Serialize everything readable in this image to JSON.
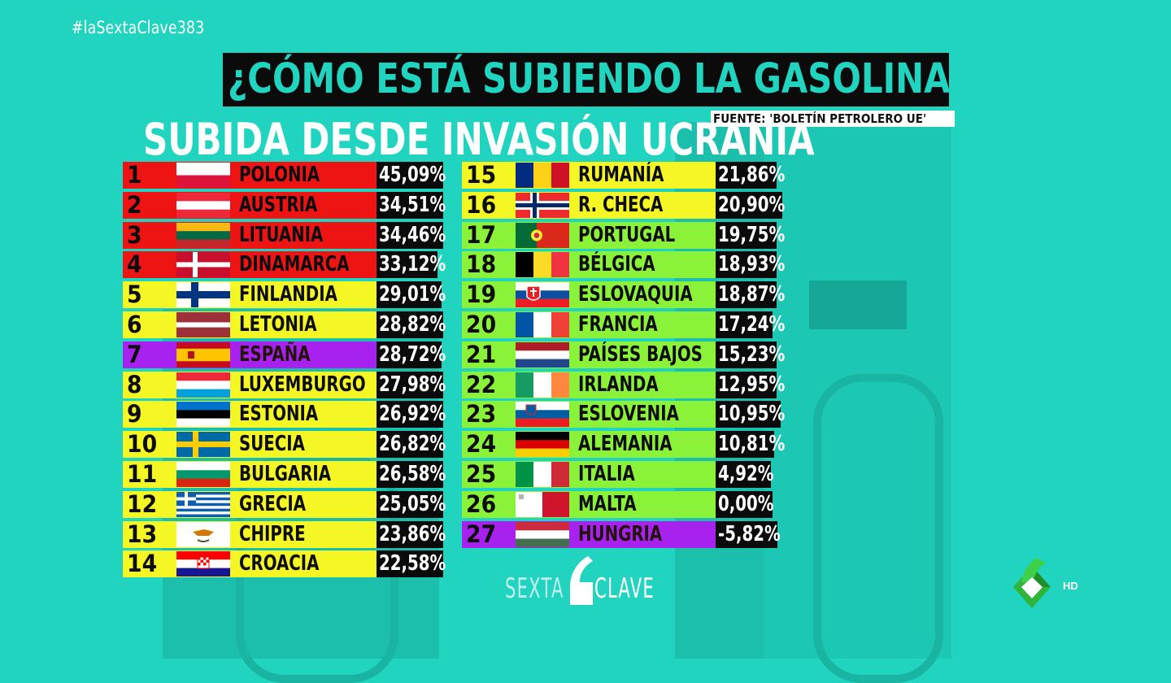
{
  "hashtag": "#laSextaClave383",
  "title": "¿CÓMO ESTÁ SUBIENDO LA GASOLINA EN EUROPA?",
  "source": "FUENTE: 'BOLETÍN PETROLERO UE'",
  "subtitle": "SUBIDA DESDE INVASIÓN UCRANIA",
  "colors": {
    "background": "#21d4c0",
    "red": "#ee1414",
    "yellow": "#f5f724",
    "purple": "#a722ee",
    "green": "#8bf23a",
    "value_box": "#0b0b0b"
  },
  "ranking": {
    "left": [
      {
        "rank": "1",
        "country": "POLONIA",
        "value": "45,09%",
        "color": "red",
        "flag": "poland-flag-icon"
      },
      {
        "rank": "2",
        "country": "AUSTRIA",
        "value": "34,51%",
        "color": "red",
        "flag": "austria-flag-icon"
      },
      {
        "rank": "3",
        "country": "LITUANIA",
        "value": "34,46%",
        "color": "red",
        "flag": "lithuania-flag-icon"
      },
      {
        "rank": "4",
        "country": "DINAMARCA",
        "value": "33,12%",
        "color": "red",
        "flag": "denmark-flag-icon"
      },
      {
        "rank": "5",
        "country": "FINLANDIA",
        "value": "29,01%",
        "color": "yellow",
        "flag": "finland-flag-icon"
      },
      {
        "rank": "6",
        "country": "LETONIA",
        "value": "28,82%",
        "color": "yellow",
        "flag": "latvia-flag-icon"
      },
      {
        "rank": "7",
        "country": "ESPAÑA",
        "value": "28,72%",
        "color": "purple",
        "flag": "spain-flag-icon"
      },
      {
        "rank": "8",
        "country": "LUXEMBURGO",
        "value": "27,98%",
        "color": "yellow",
        "flag": "luxembourg-flag-icon"
      },
      {
        "rank": "9",
        "country": "ESTONIA",
        "value": "26,92%",
        "color": "yellow",
        "flag": "estonia-flag-icon"
      },
      {
        "rank": "10",
        "country": "SUECIA",
        "value": "26,82%",
        "color": "yellow",
        "flag": "sweden-flag-icon"
      },
      {
        "rank": "11",
        "country": "BULGARIA",
        "value": "26,58%",
        "color": "yellow",
        "flag": "bulgaria-flag-icon"
      },
      {
        "rank": "12",
        "country": "GRECIA",
        "value": "25,05%",
        "color": "yellow",
        "flag": "greece-flag-icon"
      },
      {
        "rank": "13",
        "country": "CHIPRE",
        "value": "23,86%",
        "color": "yellow",
        "flag": "cyprus-flag-icon"
      },
      {
        "rank": "14",
        "country": "CROACIA",
        "value": "22,58%",
        "color": "yellow",
        "flag": "croatia-flag-icon"
      }
    ],
    "right": [
      {
        "rank": "15",
        "country": "RUMANÍA",
        "value": "21,86%",
        "color": "yellow",
        "flag": "romania-flag-icon"
      },
      {
        "rank": "16",
        "country": "R. CHECA",
        "value": "20,90%",
        "color": "yellow",
        "flag": "norway-style-flag-icon"
      },
      {
        "rank": "17",
        "country": "PORTUGAL",
        "value": "19,75%",
        "color": "green",
        "flag": "portugal-flag-icon"
      },
      {
        "rank": "18",
        "country": "BÉLGICA",
        "value": "18,93%",
        "color": "green",
        "flag": "belgium-flag-icon"
      },
      {
        "rank": "19",
        "country": "ESLOVAQUIA",
        "value": "18,87%",
        "color": "green",
        "flag": "slovakia-flag-icon"
      },
      {
        "rank": "20",
        "country": "FRANCIA",
        "value": "17,24%",
        "color": "green",
        "flag": "france-flag-icon"
      },
      {
        "rank": "21",
        "country": "PAÍSES BAJOS",
        "value": "15,23%",
        "color": "green",
        "flag": "netherlands-flag-icon"
      },
      {
        "rank": "22",
        "country": "IRLANDA",
        "value": "12,95%",
        "color": "green",
        "flag": "ireland-flag-icon"
      },
      {
        "rank": "23",
        "country": "ESLOVENIA",
        "value": "10,95%",
        "color": "green",
        "flag": "slovenia-flag-icon"
      },
      {
        "rank": "24",
        "country": "ALEMANIA",
        "value": "10,81%",
        "color": "green",
        "flag": "germany-flag-icon"
      },
      {
        "rank": "25",
        "country": "ITALIA",
        "value": "4,92%",
        "color": "green",
        "flag": "italy-flag-icon"
      },
      {
        "rank": "26",
        "country": "MALTA",
        "value": "0,00%",
        "color": "green",
        "flag": "malta-flag-icon"
      },
      {
        "rank": "27",
        "country": "HUNGRIA",
        "value": "-5,82%",
        "color": "purple",
        "flag": "hungary-flag-icon"
      }
    ]
  },
  "brand": {
    "left": "SEXTA",
    "right": "CLAVE"
  },
  "channel": {
    "badge": "HD"
  }
}
